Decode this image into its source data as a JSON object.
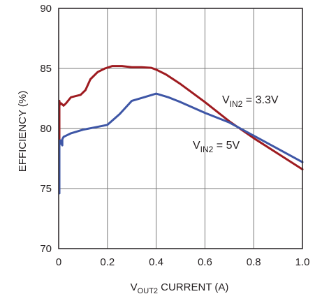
{
  "chart_data": {
    "type": "line",
    "title": "",
    "xlabel": {
      "prefix": "V",
      "sub": "OUT2",
      "suffix": " CURRENT (A)"
    },
    "ylabel": "EFFICIENCY (%)",
    "xlim": [
      0,
      1.0
    ],
    "ylim": [
      70,
      90
    ],
    "x_ticks": [
      "0",
      "0.2",
      "0.4",
      "0.6",
      "0.8",
      "1.0"
    ],
    "y_ticks": [
      "70",
      "75",
      "80",
      "85",
      "90"
    ],
    "grid": true,
    "series": [
      {
        "label": {
          "prefix": "V",
          "sub": "IN2",
          "suffix": " = 3.3V"
        },
        "color": "#9e1b20",
        "x": [
          0.003,
          0.003,
          0.005,
          0.01,
          0.02,
          0.03,
          0.05,
          0.07,
          0.09,
          0.11,
          0.13,
          0.16,
          0.19,
          0.22,
          0.26,
          0.3,
          0.34,
          0.38,
          0.4,
          0.44,
          0.5,
          0.6,
          0.7,
          0.8,
          0.9,
          1.0
        ],
        "y": [
          74.8,
          82.3,
          82.0,
          82.1,
          81.9,
          82.1,
          82.6,
          82.7,
          82.8,
          83.2,
          84.1,
          84.7,
          85.0,
          85.2,
          85.2,
          85.1,
          85.1,
          85.05,
          84.9,
          84.5,
          83.7,
          82.2,
          80.6,
          79.2,
          77.9,
          76.6
        ]
      },
      {
        "label": {
          "prefix": "V",
          "sub": "IN2",
          "suffix": " = 5V"
        },
        "color": "#3e56a6",
        "x": [
          0.003,
          0.003,
          0.005,
          0.008,
          0.01,
          0.015,
          0.015,
          0.02,
          0.03,
          0.05,
          0.1,
          0.15,
          0.2,
          0.25,
          0.3,
          0.35,
          0.4,
          0.45,
          0.5,
          0.6,
          0.7,
          0.8,
          0.9,
          1.0
        ],
        "y": [
          74.6,
          79.0,
          78.7,
          79.0,
          78.8,
          78.6,
          79.1,
          79.3,
          79.4,
          79.6,
          79.9,
          80.1,
          80.3,
          81.2,
          82.3,
          82.6,
          82.9,
          82.6,
          82.2,
          81.3,
          80.5,
          79.4,
          78.3,
          77.2
        ]
      }
    ]
  }
}
